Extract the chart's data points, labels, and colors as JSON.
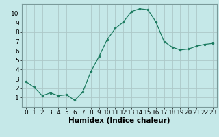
{
  "x": [
    0,
    1,
    2,
    3,
    4,
    5,
    6,
    7,
    8,
    9,
    10,
    11,
    12,
    13,
    14,
    15,
    16,
    17,
    18,
    19,
    20,
    21,
    22,
    23
  ],
  "y": [
    2.7,
    2.1,
    1.2,
    1.5,
    1.2,
    1.3,
    0.7,
    1.6,
    3.8,
    5.4,
    7.2,
    8.4,
    9.1,
    10.2,
    10.5,
    10.4,
    9.1,
    7.0,
    6.4,
    6.1,
    6.2,
    6.5,
    6.7,
    6.8
  ],
  "xlabel": "Humidex (Indice chaleur)",
  "ylim": [
    0,
    11
  ],
  "xlim": [
    -0.5,
    23.5
  ],
  "yticks": [
    1,
    2,
    3,
    4,
    5,
    6,
    7,
    8,
    9,
    10
  ],
  "xticks": [
    0,
    1,
    2,
    3,
    4,
    5,
    6,
    7,
    8,
    9,
    10,
    11,
    12,
    13,
    14,
    15,
    16,
    17,
    18,
    19,
    20,
    21,
    22,
    23
  ],
  "line_color": "#1a7a5e",
  "marker_color": "#1a7a5e",
  "bg_color": "#c5e8e8",
  "grid_color": "#adc8c8",
  "border_color": "#7a9a9a",
  "xlabel_fontsize": 7.5,
  "tick_fontsize": 6.5
}
